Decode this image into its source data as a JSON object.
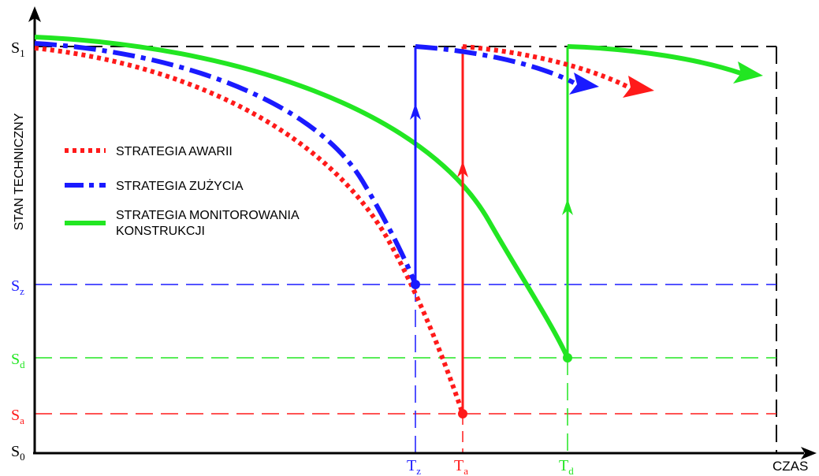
{
  "colors": {
    "awaria": "#ff1a1a",
    "zuzycie": "#1a1aff",
    "monitoring": "#22e622",
    "axis": "#000000",
    "guide": "#000000"
  },
  "axes": {
    "y_label": "STAN TECHNICZNY",
    "x_label": "CZAS"
  },
  "y_levels": {
    "s1": {
      "main": "S",
      "sub": "1"
    },
    "sz": {
      "main": "S",
      "sub": "z"
    },
    "sd": {
      "main": "S",
      "sub": "d"
    },
    "sa": {
      "main": "S",
      "sub": "a"
    },
    "s0": {
      "main": "S",
      "sub": "0"
    }
  },
  "x_marks": {
    "tz": {
      "main": "T",
      "sub": "z"
    },
    "ta": {
      "main": "T",
      "sub": "a"
    },
    "td": {
      "main": "T",
      "sub": "d"
    }
  },
  "legend": [
    {
      "key": "awaria",
      "label": "STRATEGIA AWARII",
      "style": "dotted"
    },
    {
      "key": "zuzycie",
      "label": "STRATEGIA ZUŻYCIA",
      "style": "dash-dot"
    },
    {
      "key": "monitoring",
      "label": [
        "STRATEGIA MONITOROWANIA",
        "KONSTRUKCJI"
      ],
      "style": "solid"
    }
  ]
}
